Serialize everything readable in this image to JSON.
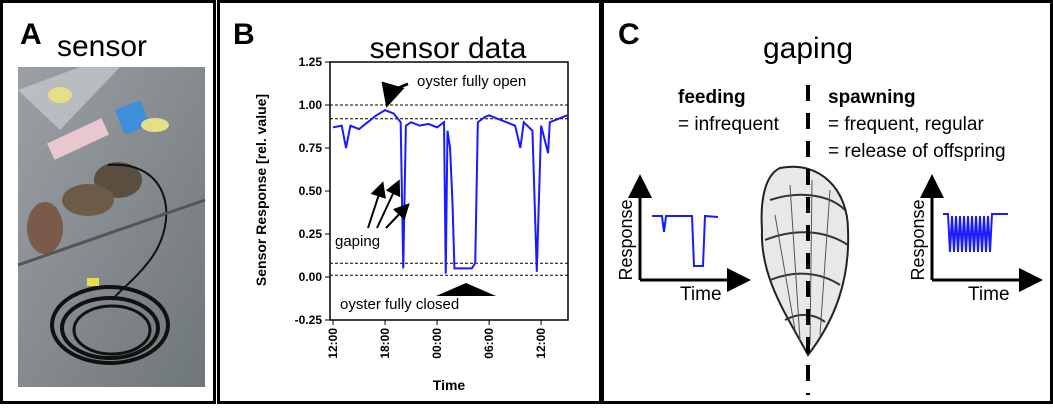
{
  "panels": {
    "a": {
      "letter": "A",
      "title": "sensor"
    },
    "b": {
      "letter": "B"
    },
    "c": {
      "letter": "C",
      "title": "gaping",
      "feeding": {
        "heading": "feeding",
        "text": "= infrequent"
      },
      "spawning": {
        "heading": "spawning",
        "lines": [
          "= frequent, regular",
          "= release of offspring"
        ]
      },
      "plots": [
        {
          "ylabel": "Response",
          "xlabel": "Time"
        },
        {
          "ylabel": "Response",
          "xlabel": "Time"
        }
      ]
    }
  },
  "chart_data": {
    "type": "line",
    "title": "sensor data",
    "xlabel": "Time",
    "ylabel": "Sensor Response [rel. value]",
    "x": [
      0,
      1,
      1.5,
      2,
      3,
      4,
      5,
      6,
      7,
      7.8,
      8.1,
      8.4,
      9,
      10,
      11,
      12,
      12.8,
      13,
      13.2,
      13.5,
      13.8,
      14,
      15,
      16,
      16.4,
      16.7,
      17.5,
      18,
      19,
      20,
      21,
      21.6,
      22,
      23,
      23.5,
      24,
      24.8,
      25,
      26,
      27
    ],
    "values": [
      0.87,
      0.88,
      0.75,
      0.88,
      0.86,
      0.9,
      0.94,
      0.97,
      0.95,
      0.9,
      0.05,
      0.88,
      0.9,
      0.88,
      0.89,
      0.87,
      0.9,
      0.02,
      0.85,
      0.75,
      0.4,
      0.05,
      0.05,
      0.05,
      0.08,
      0.9,
      0.93,
      0.94,
      0.92,
      0.9,
      0.88,
      0.75,
      0.9,
      0.85,
      0.03,
      0.88,
      0.72,
      0.9,
      0.92,
      0.94
    ],
    "color": "#1a1aff",
    "xlim": [
      -0.35,
      27.1
    ],
    "ylim": [
      -0.25,
      1.25
    ],
    "xticks": [
      {
        "value": 0,
        "label": "12:00"
      },
      {
        "value": 6,
        "label": "18:00"
      },
      {
        "value": 12,
        "label": "00:00"
      },
      {
        "value": 18,
        "label": "06:00"
      },
      {
        "value": 24,
        "label": "12:00"
      }
    ],
    "yticks": [
      {
        "value": -0.25,
        "label": "-0.25"
      },
      {
        "value": 0,
        "label": "0.00"
      },
      {
        "value": 0.25,
        "label": "0.25"
      },
      {
        "value": 0.5,
        "label": "0.50"
      },
      {
        "value": 0.75,
        "label": "0.75"
      },
      {
        "value": 1,
        "label": "1.00"
      },
      {
        "value": 1.25,
        "label": "1.25"
      }
    ],
    "reference_lines": [
      1.0,
      0.92,
      0.08,
      0.01
    ],
    "annotations": [
      "oyster fully open",
      "gaping",
      "oyster fully closed"
    ]
  }
}
